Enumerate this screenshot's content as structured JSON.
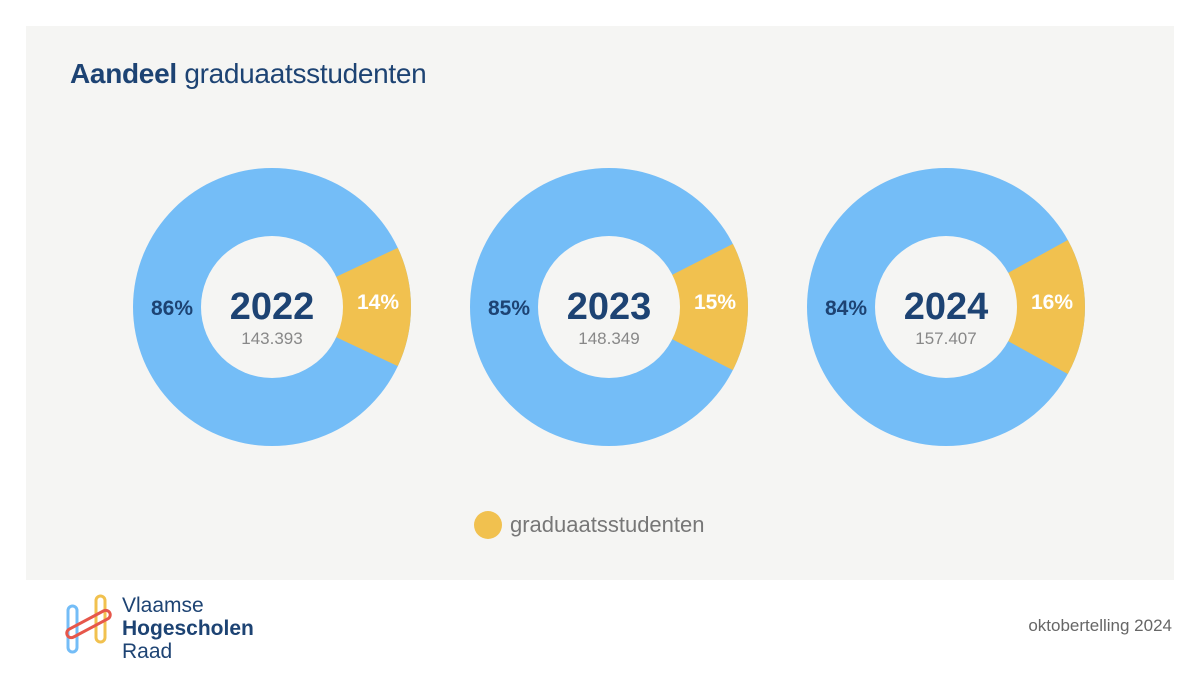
{
  "header": {
    "title_bold": "Aandeel",
    "title_rest": "graduaatsstudenten"
  },
  "colors": {
    "base": "#74bdf7",
    "highlight": "#f1c14f",
    "center": "#f5f5f3",
    "text_dark": "#1d4373",
    "text_white": "#ffffff",
    "text_grey": "#888888"
  },
  "chart_data": [
    {
      "type": "pie",
      "center_label": "2022",
      "total": "143.393",
      "slices": [
        {
          "name": "graduaatsstudenten",
          "value": 14,
          "label": "14%"
        },
        {
          "name": "",
          "value": 86,
          "label": "86%"
        }
      ]
    },
    {
      "type": "pie",
      "center_label": "2023",
      "total": "148.349",
      "slices": [
        {
          "name": "graduaatsstudenten",
          "value": 15,
          "label": "15%"
        },
        {
          "name": "",
          "value": 85,
          "label": "85%"
        }
      ]
    },
    {
      "type": "pie",
      "center_label": "2024",
      "total": "157.407",
      "slices": [
        {
          "name": "graduaatsstudenten",
          "value": 16,
          "label": "16%"
        },
        {
          "name": "",
          "value": 84,
          "label": "84%"
        }
      ]
    }
  ],
  "legend": {
    "label": "graduaatsstudenten"
  },
  "footer": {
    "logo_line1": "Vlaamse",
    "logo_line2": "Hogescholen",
    "logo_line3": "Raad",
    "source": "oktobertelling 2024"
  }
}
